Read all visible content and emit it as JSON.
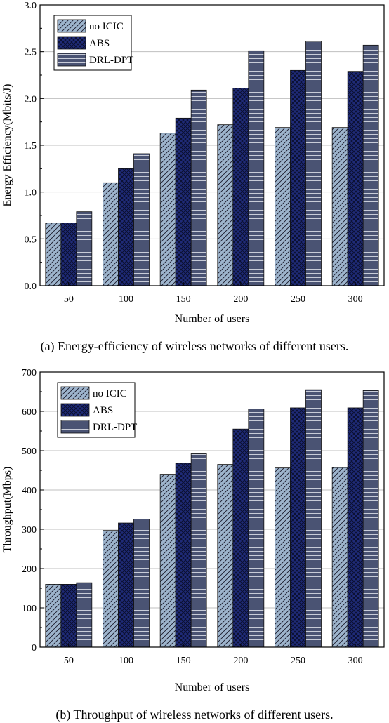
{
  "chart_data": [
    {
      "type": "bar",
      "categories": [
        "50",
        "100",
        "150",
        "200",
        "250",
        "300"
      ],
      "series": [
        {
          "name": "no ICIC",
          "values": [
            0.67,
            1.1,
            1.63,
            1.72,
            1.69,
            1.69
          ]
        },
        {
          "name": "ABS",
          "values": [
            0.67,
            1.25,
            1.79,
            2.11,
            2.3,
            2.29
          ]
        },
        {
          "name": "DRL-DPT",
          "values": [
            0.79,
            1.41,
            2.09,
            2.51,
            2.61,
            2.57
          ]
        }
      ],
      "xlabel": "Number of  users",
      "ylabel": "Energy Efficiency(Mbits/J)",
      "ylim": [
        0,
        3.0
      ],
      "yticks": [
        "0.0",
        "0.5",
        "1.0",
        "1.5",
        "2.0",
        "2.5",
        "3.0"
      ],
      "legend": "top-left",
      "caption": "(a) Energy-efficiency of wireless networks of different users."
    },
    {
      "type": "bar",
      "categories": [
        "50",
        "100",
        "150",
        "200",
        "250",
        "300"
      ],
      "series": [
        {
          "name": "no ICIC",
          "values": [
            160,
            297,
            440,
            465,
            456,
            457
          ]
        },
        {
          "name": "ABS",
          "values": [
            160,
            316,
            468,
            555,
            609,
            609
          ]
        },
        {
          "name": "DRL-DPT",
          "values": [
            164,
            326,
            492,
            606,
            655,
            653
          ]
        }
      ],
      "xlabel": "Number of  users",
      "ylabel": "Throughput(Mbps)",
      "ylim": [
        0,
        700
      ],
      "yticks": [
        "0",
        "100",
        "200",
        "300",
        "400",
        "500",
        "600",
        "700"
      ],
      "legend": "top-left",
      "caption": "(b) Throughput of wireless networks of different users."
    }
  ],
  "colors": {
    "no_icic": "#9db4cc",
    "abs": "#1f2b78",
    "drl_dpt": "#4a5373",
    "grid": "#bfbfbf"
  }
}
